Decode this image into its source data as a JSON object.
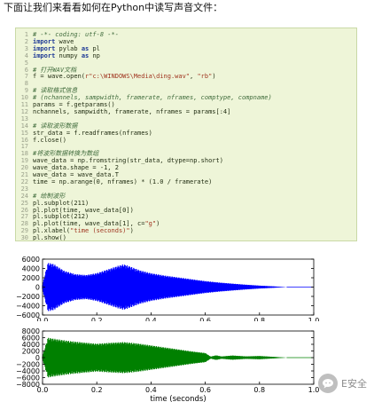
{
  "intro_text": "下面让我们来看看如何在Python中读写声音文件：",
  "code": [
    {
      "n": "1",
      "parts": [
        {
          "c": "cm",
          "t": "# -*- coding: utf-8 -*-"
        }
      ]
    },
    {
      "n": "2",
      "parts": [
        {
          "c": "kw",
          "t": "import"
        },
        {
          "c": "",
          "t": " wave"
        }
      ]
    },
    {
      "n": "3",
      "parts": [
        {
          "c": "kw",
          "t": "import"
        },
        {
          "c": "",
          "t": " pylab "
        },
        {
          "c": "kw",
          "t": "as"
        },
        {
          "c": "",
          "t": " pl"
        }
      ]
    },
    {
      "n": "4",
      "parts": [
        {
          "c": "kw",
          "t": "import"
        },
        {
          "c": "",
          "t": " numpy "
        },
        {
          "c": "kw",
          "t": "as"
        },
        {
          "c": "",
          "t": " np"
        }
      ]
    },
    {
      "n": "5",
      "parts": []
    },
    {
      "n": "6",
      "parts": [
        {
          "c": "cm",
          "t": "# 打开WAV文档"
        }
      ]
    },
    {
      "n": "7",
      "parts": [
        {
          "c": "",
          "t": "f = wave.open("
        },
        {
          "c": "str",
          "t": "r\"c:\\WINDOWS\\Media\\ding.wav\""
        },
        {
          "c": "",
          "t": ", "
        },
        {
          "c": "str",
          "t": "\"rb\""
        },
        {
          "c": "",
          "t": ")"
        }
      ]
    },
    {
      "n": "8",
      "parts": []
    },
    {
      "n": "9",
      "parts": [
        {
          "c": "cm",
          "t": "# 读取格式信息"
        }
      ]
    },
    {
      "n": "10",
      "parts": [
        {
          "c": "cm",
          "t": "# (nchannels, sampwidth, framerate, nframes, comptype, compname)"
        }
      ]
    },
    {
      "n": "11",
      "parts": [
        {
          "c": "",
          "t": "params = f.getparams()"
        }
      ]
    },
    {
      "n": "12",
      "parts": [
        {
          "c": "",
          "t": "nchannels, sampwidth, framerate, nframes = params[:4]"
        }
      ]
    },
    {
      "n": "13",
      "parts": []
    },
    {
      "n": "14",
      "parts": [
        {
          "c": "cm",
          "t": "# 读取波形数据"
        }
      ]
    },
    {
      "n": "15",
      "parts": [
        {
          "c": "",
          "t": "str_data = f.readframes(nframes)"
        }
      ]
    },
    {
      "n": "16",
      "parts": [
        {
          "c": "",
          "t": "f.close()"
        }
      ]
    },
    {
      "n": "17",
      "parts": []
    },
    {
      "n": "18",
      "parts": [
        {
          "c": "cm",
          "t": "#将波形数据转换为数组"
        }
      ]
    },
    {
      "n": "19",
      "parts": [
        {
          "c": "",
          "t": "wave_data = np.fromstring(str_data, dtype=np.short)"
        }
      ]
    },
    {
      "n": "20",
      "parts": [
        {
          "c": "",
          "t": "wave_data.shape = -1, 2"
        }
      ]
    },
    {
      "n": "21",
      "parts": [
        {
          "c": "",
          "t": "wave_data = wave_data.T"
        }
      ]
    },
    {
      "n": "22",
      "parts": [
        {
          "c": "",
          "t": "time = np.arange(0, nframes) * (1.0 / framerate)"
        }
      ]
    },
    {
      "n": "23",
      "parts": []
    },
    {
      "n": "24",
      "parts": [
        {
          "c": "cm",
          "t": "# 绘制波形"
        }
      ]
    },
    {
      "n": "25",
      "parts": [
        {
          "c": "",
          "t": "pl.subplot(211)"
        }
      ]
    },
    {
      "n": "26",
      "parts": [
        {
          "c": "",
          "t": "pl.plot(time, wave_data[0])"
        }
      ]
    },
    {
      "n": "27",
      "parts": [
        {
          "c": "",
          "t": "pl.subplot(212)"
        }
      ]
    },
    {
      "n": "28",
      "parts": [
        {
          "c": "",
          "t": "pl.plot(time, wave_data[1], c="
        },
        {
          "c": "str",
          "t": "\"g\""
        },
        {
          "c": "",
          "t": ")"
        }
      ]
    },
    {
      "n": "29",
      "parts": [
        {
          "c": "",
          "t": "pl.xlabel("
        },
        {
          "c": "str",
          "t": "\"time (seconds)\""
        },
        {
          "c": "",
          "t": ")"
        }
      ]
    },
    {
      "n": "30",
      "parts": [
        {
          "c": "",
          "t": "pl.show()"
        }
      ]
    }
  ],
  "chart_data": [
    {
      "type": "area",
      "color": "#0000ff",
      "xlim": [
        0.0,
        1.0
      ],
      "ylim": [
        -6000,
        6000
      ],
      "xticks": [
        "0.0",
        "0.2",
        "0.4",
        "0.6",
        "0.8",
        "1.0"
      ],
      "yticks": [
        "6000",
        "4000",
        "2000",
        "0",
        "−2000",
        "−4000",
        "−6000"
      ],
      "xlabel": "",
      "envelope": {
        "x": [
          0.0,
          0.02,
          0.04,
          0.08,
          0.12,
          0.16,
          0.2,
          0.24,
          0.28,
          0.3,
          0.32,
          0.36,
          0.4,
          0.45,
          0.5,
          0.55,
          0.6,
          0.65,
          0.7,
          0.75,
          0.8,
          0.85,
          0.88,
          0.9
        ],
        "amplitude": [
          500,
          5200,
          5000,
          3500,
          2800,
          2600,
          3000,
          3800,
          4600,
          4900,
          4500,
          3600,
          3000,
          2500,
          2100,
          1700,
          1300,
          1000,
          750,
          520,
          320,
          160,
          60,
          0
        ]
      }
    },
    {
      "type": "area",
      "color": "#008000",
      "xlim": [
        0.0,
        1.0
      ],
      "ylim": [
        -8000,
        8000
      ],
      "xticks": [
        "0.0",
        "0.2",
        "0.4",
        "0.6",
        "0.8",
        "1.0"
      ],
      "yticks": [
        "8000",
        "6000",
        "4000",
        "2000",
        "0",
        "−2000",
        "−4000",
        "−6000",
        "−8000"
      ],
      "xlabel": "time (seconds)",
      "envelope": {
        "x": [
          0.0,
          0.02,
          0.05,
          0.1,
          0.15,
          0.2,
          0.25,
          0.3,
          0.35,
          0.4,
          0.45,
          0.5,
          0.55,
          0.6,
          0.62,
          0.64,
          0.66,
          0.7,
          0.75,
          0.8,
          0.85,
          0.9
        ],
        "amplitude": [
          400,
          6000,
          5600,
          5000,
          4600,
          4200,
          4500,
          4700,
          4300,
          3700,
          3100,
          2500,
          1900,
          1400,
          300,
          700,
          350,
          650,
          380,
          500,
          250,
          0
        ]
      }
    }
  ],
  "watermark": {
    "text": "E安全",
    "icon": "chat-bubble-icon"
  }
}
